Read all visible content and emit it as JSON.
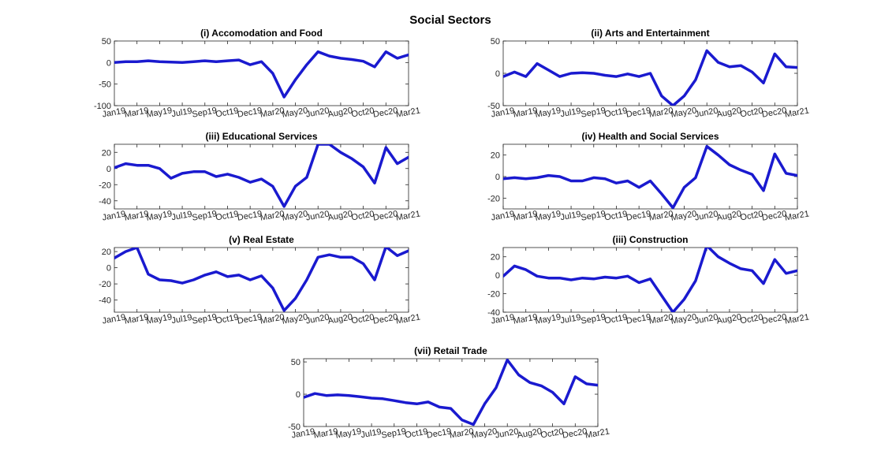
{
  "figure_title": "Social Sectors",
  "colors": {
    "series": "#1a1acf",
    "axes": "#262626",
    "background": "#ffffff"
  },
  "chart_data": [
    {
      "type": "line",
      "title": "(i) Accomodation and Food",
      "x_tick_labels": [
        "Jan19",
        "Mar19",
        "May19",
        "Jul19",
        "Sep19",
        "Oct19",
        "Dec19",
        "Mar20",
        "May20",
        "Jun20",
        "Aug20",
        "Oct20",
        "Dec20",
        "Mar21"
      ],
      "ylim": [
        -100,
        50
      ],
      "yticks": [
        -100,
        -50,
        0,
        50
      ],
      "series": [
        {
          "values": [
            0,
            2,
            2,
            4,
            2,
            1,
            0,
            2,
            4,
            2,
            4,
            6,
            -5,
            2,
            -25,
            -80,
            -40,
            -5,
            25,
            15,
            10,
            7,
            3,
            -10,
            25,
            10,
            18
          ]
        }
      ]
    },
    {
      "type": "line",
      "title": "(ii) Arts and Entertainment",
      "x_tick_labels": [
        "Jan19",
        "Mar19",
        "May19",
        "Jul19",
        "Sep19",
        "Oct19",
        "Dec19",
        "Mar20",
        "May20",
        "Jun20",
        "Aug20",
        "Oct20",
        "Dec20",
        "Mar21"
      ],
      "ylim": [
        -50,
        50
      ],
      "yticks": [
        -50,
        0,
        50
      ],
      "series": [
        {
          "values": [
            -5,
            2,
            -5,
            15,
            5,
            -5,
            0,
            1,
            0,
            -3,
            -5,
            -1,
            -5,
            0,
            -35,
            -50,
            -35,
            -10,
            35,
            17,
            10,
            12,
            2,
            -15,
            30,
            10,
            9
          ]
        }
      ]
    },
    {
      "type": "line",
      "title": "(iii) Educational Services",
      "x_tick_labels": [
        "Jan19",
        "Mar19",
        "May19",
        "Jul19",
        "Sep19",
        "Oct19",
        "Dec19",
        "Mar20",
        "May20",
        "Jun20",
        "Aug20",
        "Oct20",
        "Dec20",
        "Mar21"
      ],
      "ylim": [
        -50,
        30
      ],
      "yticks": [
        -40,
        -20,
        0,
        20
      ],
      "series": [
        {
          "values": [
            1,
            6,
            4,
            4,
            0,
            -12,
            -6,
            -4,
            -4,
            -10,
            -7,
            -11,
            -17,
            -13,
            -22,
            -47,
            -22,
            -11,
            30,
            30,
            20,
            12,
            2,
            -18,
            26,
            6,
            14
          ]
        }
      ]
    },
    {
      "type": "line",
      "title": "(iv) Health and Social Services",
      "x_tick_labels": [
        "Jan19",
        "Mar19",
        "May19",
        "Jul19",
        "Sep19",
        "Oct19",
        "Dec19",
        "Mar20",
        "May20",
        "Jun20",
        "Aug20",
        "Oct20",
        "Dec20",
        "Mar21"
      ],
      "ylim": [
        -30,
        30
      ],
      "yticks": [
        -20,
        0,
        20
      ],
      "series": [
        {
          "values": [
            -2,
            -1,
            -2,
            -1,
            1,
            0,
            -4,
            -4,
            -1,
            -2,
            -6,
            -4,
            -10,
            -4,
            -16,
            -29,
            -10,
            -1,
            28,
            20,
            11,
            6,
            2,
            -13,
            21,
            3,
            1
          ]
        }
      ]
    },
    {
      "type": "line",
      "title": "(v) Real Estate",
      "x_tick_labels": [
        "Jan19",
        "Mar19",
        "May19",
        "Jul19",
        "Sep19",
        "Oct19",
        "Dec19",
        "Mar20",
        "May20",
        "Jun20",
        "Aug20",
        "Oct20",
        "Dec20",
        "Mar21"
      ],
      "ylim": [
        -55,
        25
      ],
      "yticks": [
        -40,
        -20,
        0,
        20
      ],
      "series": [
        {
          "values": [
            12,
            20,
            25,
            -8,
            -15,
            -16,
            -19,
            -15,
            -9,
            -5,
            -11,
            -9,
            -15,
            -10,
            -25,
            -53,
            -38,
            -15,
            13,
            16,
            13,
            13,
            5,
            -15,
            26,
            15,
            21
          ]
        }
      ]
    },
    {
      "type": "line",
      "title": "(iii) Construction",
      "x_tick_labels": [
        "Jan19",
        "Mar19",
        "May19",
        "Jul19",
        "Sep19",
        "Oct19",
        "Dec19",
        "Mar20",
        "May20",
        "Jun20",
        "Aug20",
        "Oct20",
        "Dec20",
        "Mar21"
      ],
      "ylim": [
        -40,
        30
      ],
      "yticks": [
        -40,
        -20,
        0,
        20
      ],
      "series": [
        {
          "values": [
            -1,
            10,
            6,
            -1,
            -3,
            -3,
            -5,
            -3,
            -4,
            -2,
            -3,
            -1,
            -8,
            -4,
            -22,
            -40,
            -26,
            -6,
            32,
            20,
            13,
            7,
            5,
            -9,
            17,
            2,
            5
          ]
        }
      ]
    },
    {
      "type": "line",
      "title": "(vii) Retail Trade",
      "x_tick_labels": [
        "Jan19",
        "Mar19",
        "May19",
        "Jul19",
        "Sep19",
        "Oct19",
        "Dec19",
        "Mar20",
        "May20",
        "Jun20",
        "Aug20",
        "Oct20",
        "Dec20",
        "Mar21"
      ],
      "ylim": [
        -50,
        55
      ],
      "yticks": [
        -50,
        0,
        50
      ],
      "series": [
        {
          "values": [
            -5,
            1,
            -2,
            -1,
            -2,
            -4,
            -6,
            -7,
            -10,
            -13,
            -15,
            -12,
            -20,
            -22,
            -40,
            -47,
            -15,
            10,
            53,
            30,
            18,
            13,
            3,
            -15,
            27,
            16,
            14
          ]
        }
      ]
    }
  ]
}
